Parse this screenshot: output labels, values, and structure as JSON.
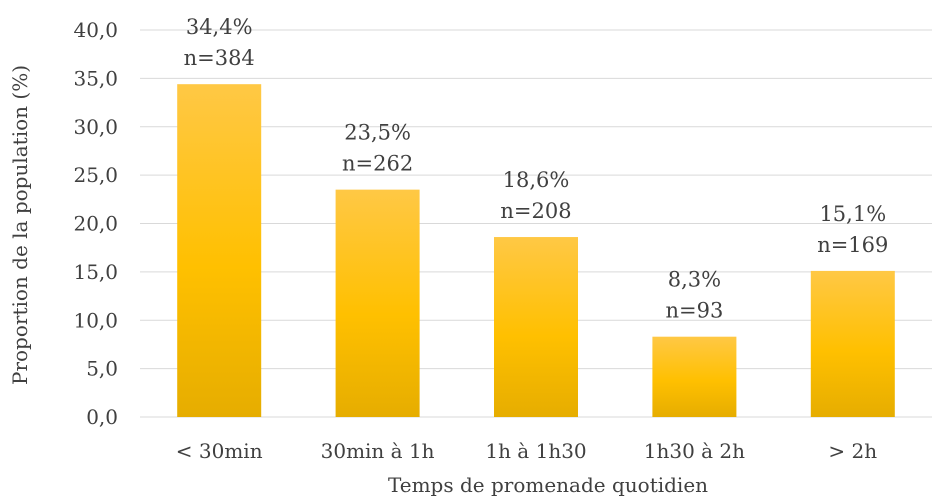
{
  "chart_data": {
    "type": "bar",
    "categories": [
      "< 30min",
      "30min à 1h",
      "1h à 1h30",
      "1h30 à 2h",
      "> 2h"
    ],
    "values": [
      34.4,
      23.5,
      18.6,
      8.3,
      15.1
    ],
    "data_labels": [
      [
        "34,4%",
        "n=384"
      ],
      [
        "23,5%",
        "n=262"
      ],
      [
        "18,6%",
        "n=208"
      ],
      [
        "8,3%",
        "n=93"
      ],
      [
        "15,1%",
        "n=169"
      ]
    ],
    "xlabel": "Temps de promenade quotidien",
    "ylabel": "Proportion de la population (%)",
    "ylim": [
      0,
      40
    ],
    "yticks": [
      "0,0",
      "5,0",
      "10,0",
      "15,0",
      "20,0",
      "25,0",
      "30,0",
      "35,0",
      "40,0"
    ],
    "grid": true,
    "colors": {
      "bar_top": "#ffc845",
      "bar_mid": "#ffc000",
      "bar_bottom": "#e6ad00",
      "grid": "#d9d9d9",
      "text": "#404040"
    }
  }
}
